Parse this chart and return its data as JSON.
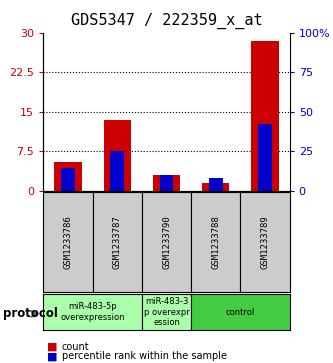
{
  "title": "GDS5347 / 222359_x_at",
  "samples": [
    "GSM1233786",
    "GSM1233787",
    "GSM1233790",
    "GSM1233788",
    "GSM1233789"
  ],
  "red_values": [
    5.5,
    13.5,
    3.0,
    1.5,
    28.5
  ],
  "blue_values": [
    14.0,
    25.0,
    10.0,
    8.0,
    42.0
  ],
  "left_ylim": [
    0,
    30
  ],
  "right_ylim": [
    0,
    100
  ],
  "left_yticks": [
    0,
    7.5,
    15,
    22.5,
    30
  ],
  "left_yticklabels": [
    "0",
    "7.5",
    "15",
    "22.5",
    "30"
  ],
  "right_yticks": [
    0,
    25,
    50,
    75,
    100
  ],
  "right_yticklabels": [
    "0",
    "25",
    "50",
    "75",
    "100%"
  ],
  "grid_values": [
    7.5,
    15,
    22.5
  ],
  "red_color": "#cc0000",
  "blue_color": "#0000cc",
  "protocol_labels": [
    "miR-483-5p\noverexpression",
    "miR-483-3\np overexpr\nession",
    "control"
  ],
  "protocol_groups": [
    [
      0,
      1
    ],
    [
      2
    ],
    [
      3,
      4
    ]
  ],
  "protocol_colors": [
    "#aaffaa",
    "#aaffaa",
    "#44cc44"
  ],
  "sample_bg_color": "#cccccc",
  "legend_count": "count",
  "legend_pct": "percentile rank within the sample",
  "title_fontsize": 11,
  "tick_fontsize": 8
}
